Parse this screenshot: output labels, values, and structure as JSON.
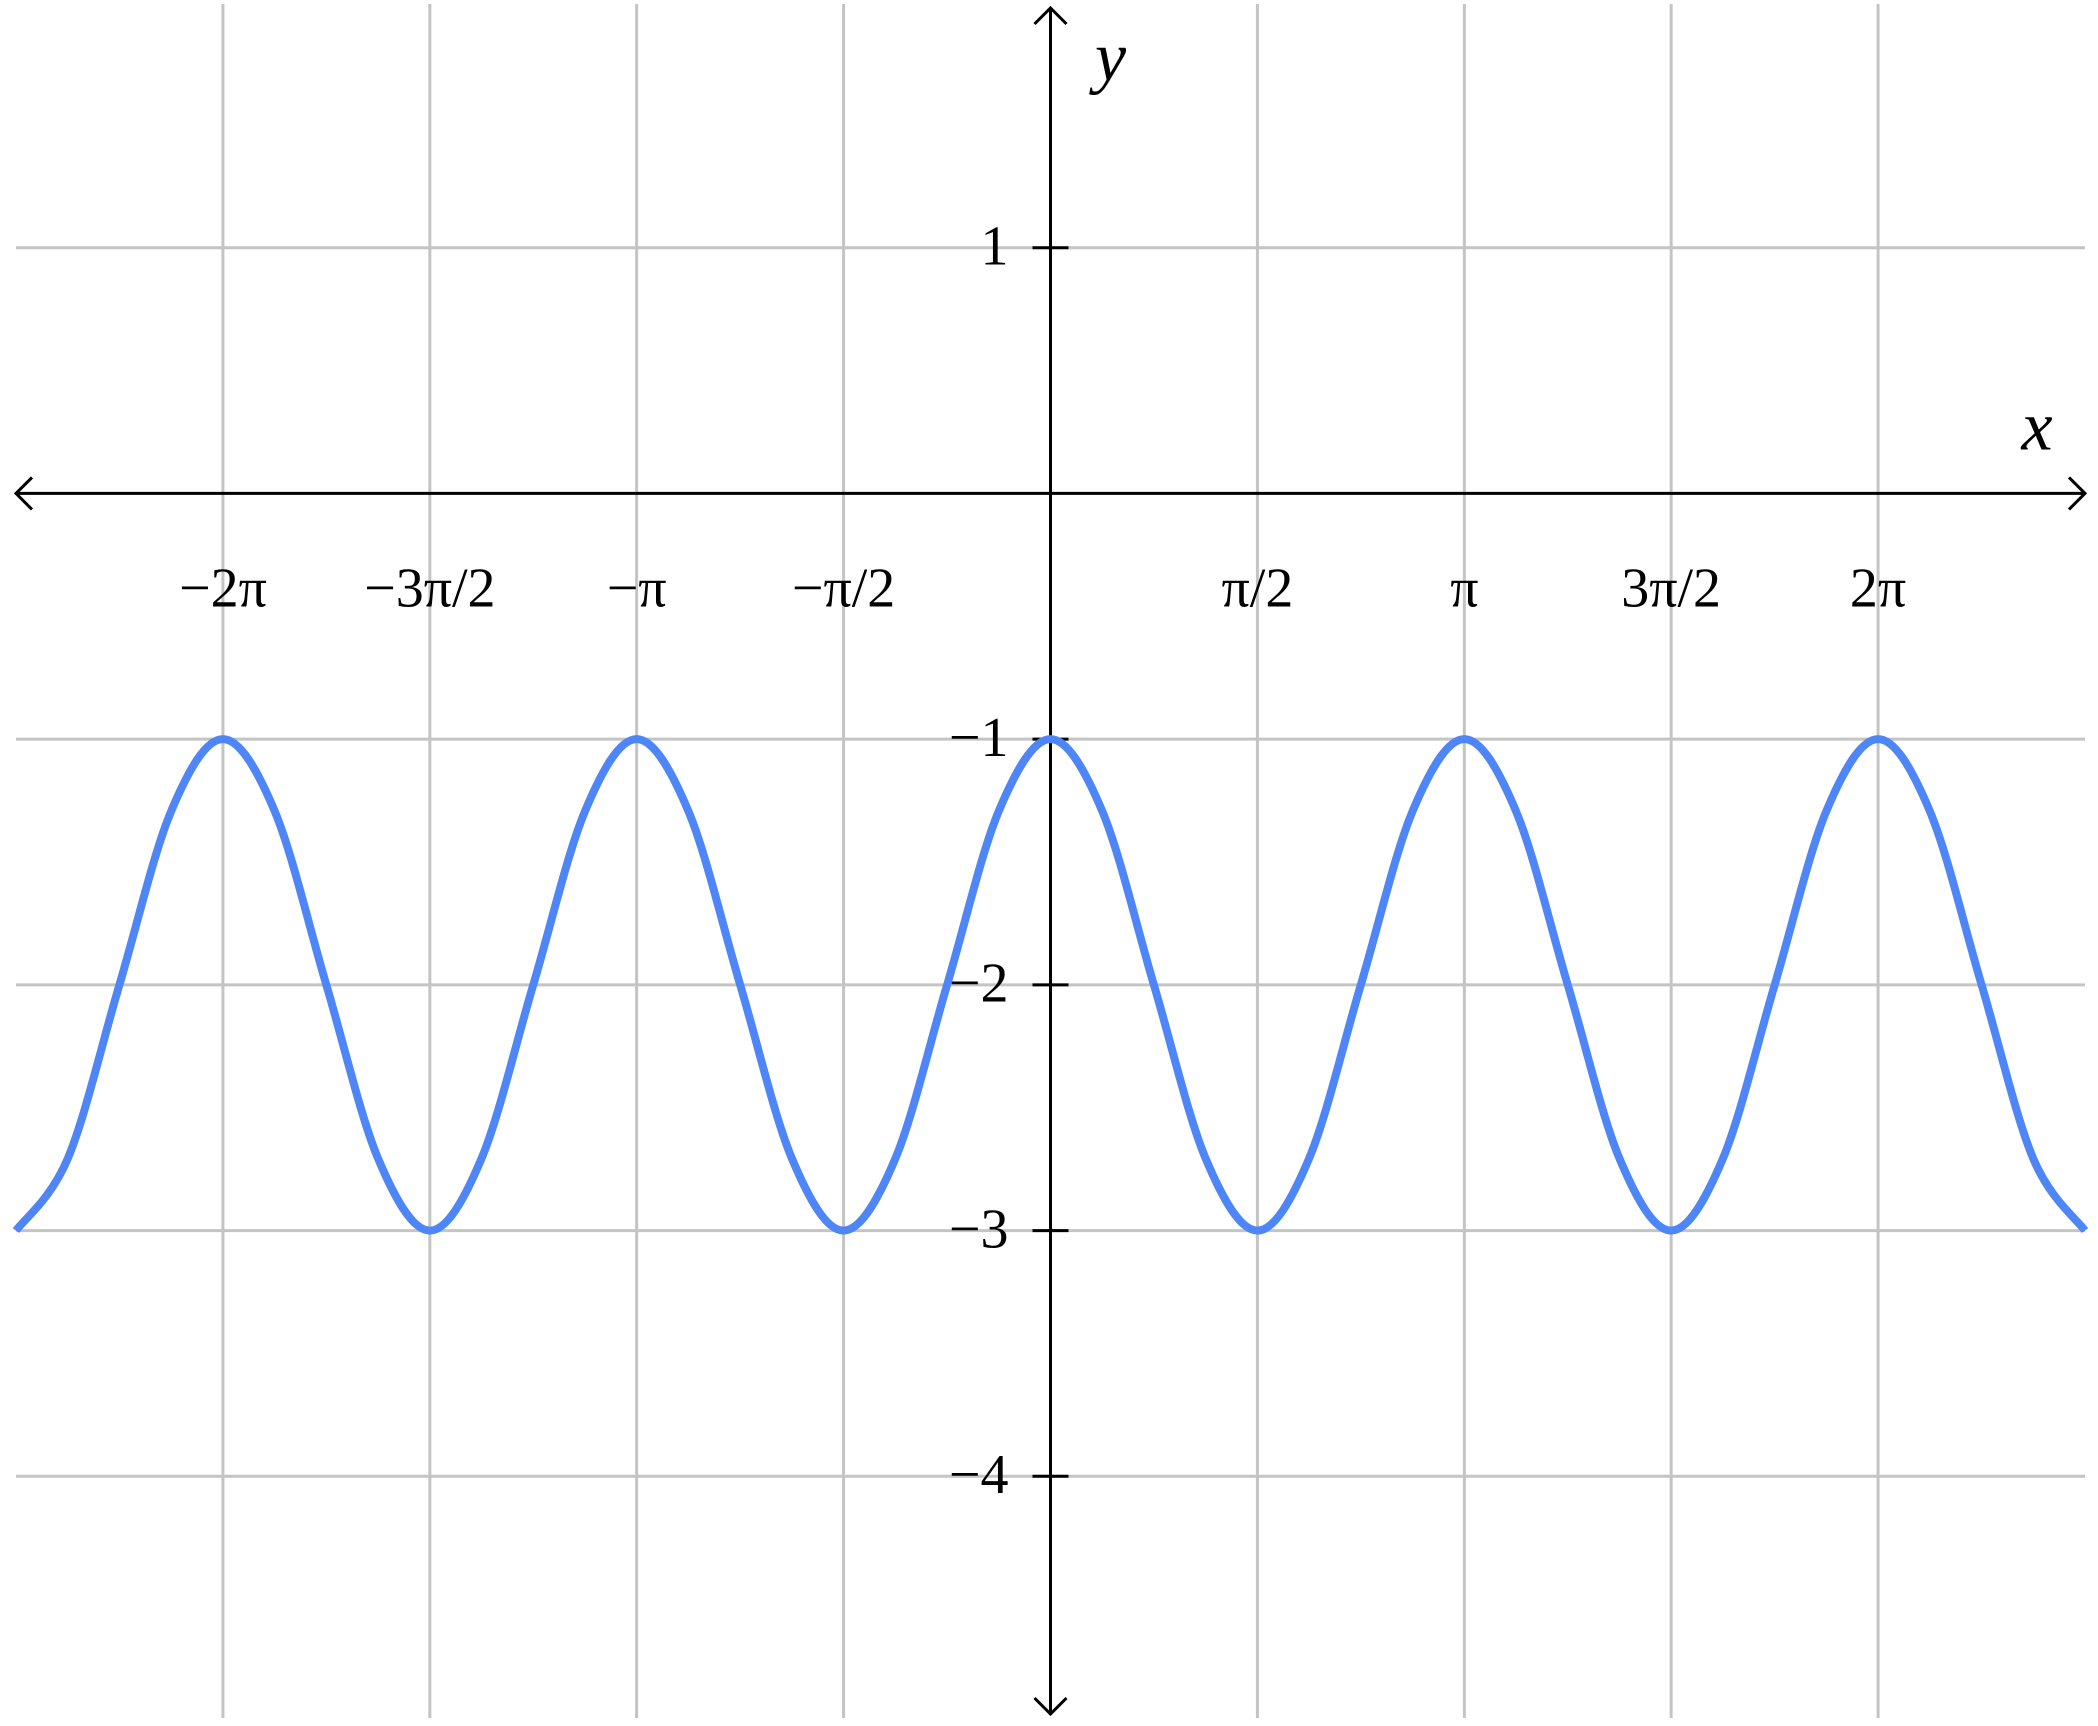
{
  "chart_data": {
    "type": "line",
    "xlabel": "x",
    "ylabel": "y",
    "xlim": [
      -7.854,
      7.854
    ],
    "ylim": [
      -5,
      2
    ],
    "grid": true,
    "xticks": [
      {
        "value": -6.283,
        "label": "−2π"
      },
      {
        "value": -4.712,
        "label": "−3π/2"
      },
      {
        "value": -3.142,
        "label": "−π"
      },
      {
        "value": -1.571,
        "label": "−π/2"
      },
      {
        "value": 1.571,
        "label": "π/2"
      },
      {
        "value": 3.142,
        "label": "π"
      },
      {
        "value": 4.712,
        "label": "3π/2"
      },
      {
        "value": 6.283,
        "label": "2π"
      }
    ],
    "yticks": [
      1,
      {
        "value": -1,
        "label": "−1"
      },
      {
        "value": -2,
        "label": "−2"
      },
      {
        "value": -3,
        "label": "−3"
      },
      {
        "value": -4,
        "label": "−4"
      }
    ],
    "x": [
      -7.854,
      -7.461,
      -7.069,
      -6.676,
      -6.283,
      -5.89,
      -5.498,
      -5.105,
      -4.712,
      -4.32,
      -3.927,
      -3.534,
      -3.142,
      -2.749,
      -2.356,
      -1.963,
      -1.571,
      -1.178,
      -0.785,
      -0.393,
      0,
      0.393,
      0.785,
      1.178,
      1.571,
      1.963,
      2.356,
      2.749,
      3.142,
      3.534,
      3.927,
      4.32,
      4.712,
      5.105,
      5.498,
      5.89,
      6.283,
      6.676,
      7.069,
      7.461,
      7.854
    ],
    "series": [
      {
        "color": "#4f86f7",
        "values": [
          -3,
          -2.707,
          -2,
          -1.293,
          -1,
          -1.293,
          -2,
          -2.707,
          -3,
          -2.707,
          -2,
          -1.293,
          -1,
          -1.293,
          -2,
          -2.707,
          -3,
          -2.707,
          -2,
          -1.293,
          -1,
          -1.293,
          -2,
          -2.707,
          -3,
          -2.707,
          -2,
          -1.293,
          -1,
          -1.293,
          -2,
          -2.707,
          -3,
          -2.707,
          -2,
          -1.293,
          -1,
          -1.293,
          -2,
          -2.707,
          -3
        ]
      }
    ]
  }
}
